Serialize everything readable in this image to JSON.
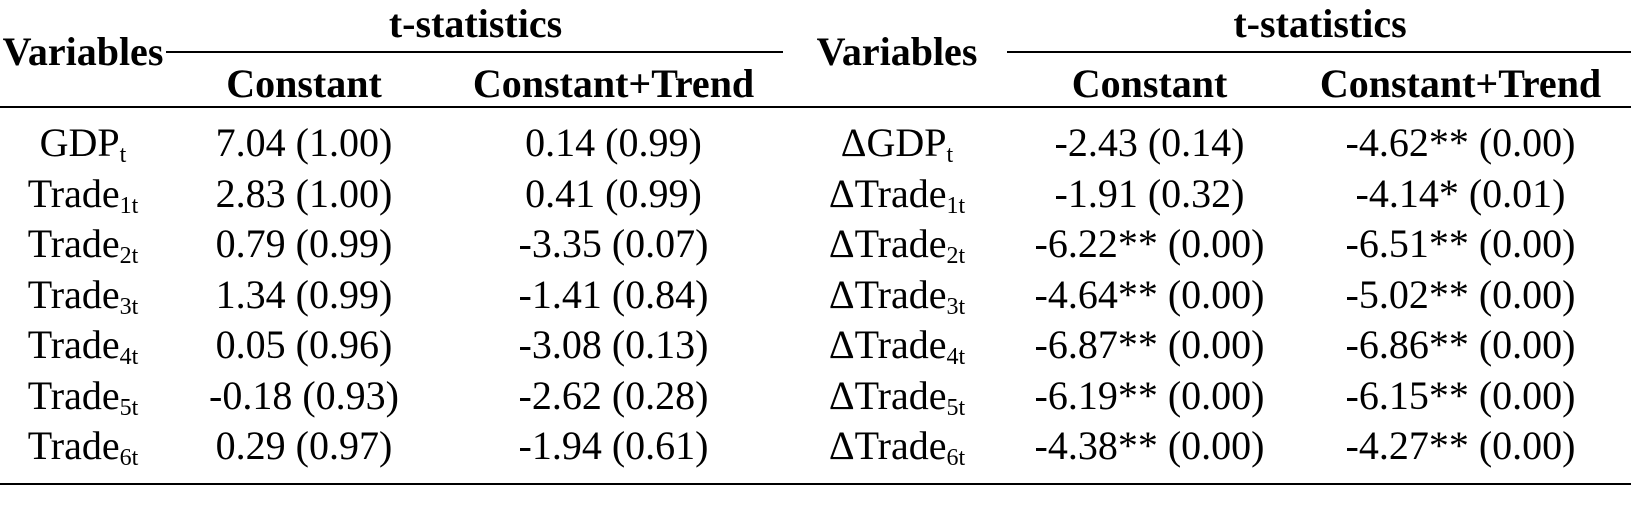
{
  "table": {
    "group_headers": [
      "t-statistics",
      "t-statistics"
    ],
    "columns": [
      "Variables",
      "Constant",
      "Constant+Trend",
      "Variables",
      "Constant",
      "Constant+Trend"
    ],
    "rows": [
      [
        {
          "name": "GDP",
          "sub": "t"
        },
        "7.04 (1.00)",
        "0.14 (0.99)",
        {
          "name": "ΔGDP",
          "sub": "t"
        },
        "-2.43 (0.14)",
        "-4.62** (0.00)"
      ],
      [
        {
          "name": "Trade",
          "sub": "1t"
        },
        "2.83 (1.00)",
        "0.41 (0.99)",
        {
          "name": "ΔTrade",
          "sub": "1t"
        },
        "-1.91 (0.32)",
        "-4.14* (0.01)"
      ],
      [
        {
          "name": "Trade",
          "sub": "2t"
        },
        "0.79 (0.99)",
        "-3.35 (0.07)",
        {
          "name": "ΔTrade",
          "sub": "2t"
        },
        "-6.22** (0.00)",
        "-6.51** (0.00)"
      ],
      [
        {
          "name": "Trade",
          "sub": "3t"
        },
        "1.34 (0.99)",
        "-1.41 (0.84)",
        {
          "name": "ΔTrade",
          "sub": "3t"
        },
        "-4.64** (0.00)",
        "-5.02** (0.00)"
      ],
      [
        {
          "name": "Trade",
          "sub": "4t"
        },
        "0.05 (0.96)",
        "-3.08 (0.13)",
        {
          "name": "ΔTrade",
          "sub": "4t"
        },
        "-6.87** (0.00)",
        "-6.86** (0.00)"
      ],
      [
        {
          "name": "Trade",
          "sub": "5t"
        },
        "-0.18 (0.93)",
        "-2.62 (0.28)",
        {
          "name": "ΔTrade",
          "sub": "5t"
        },
        "-6.19** (0.00)",
        "-6.15** (0.00)"
      ],
      [
        {
          "name": "Trade",
          "sub": "6t"
        },
        "0.29 (0.97)",
        "-1.94 (0.61)",
        {
          "name": "ΔTrade",
          "sub": "6t"
        },
        "-4.38** (0.00)",
        "-4.27** (0.00)"
      ]
    ]
  }
}
